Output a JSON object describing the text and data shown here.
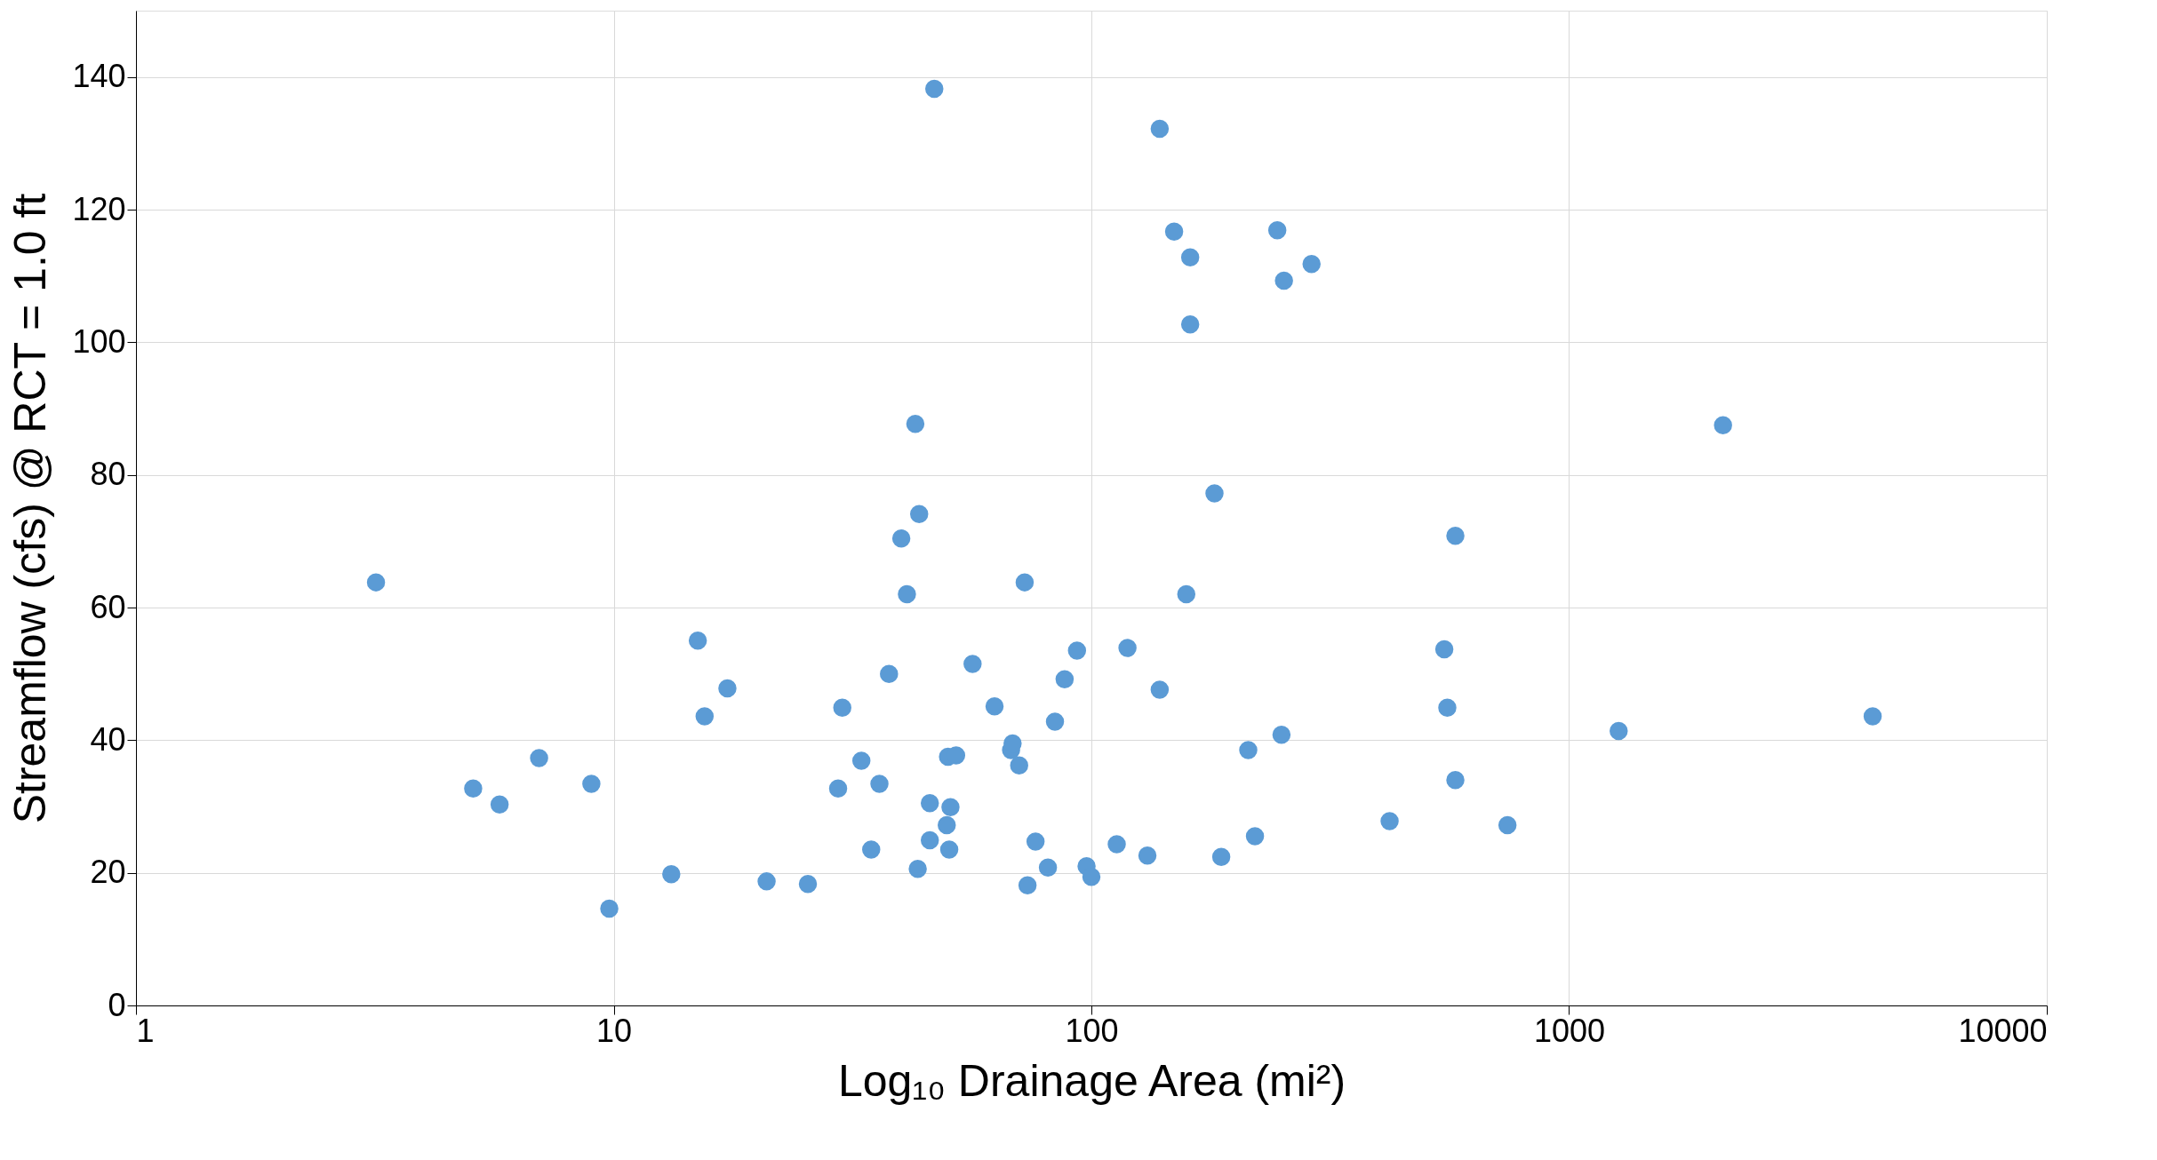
{
  "chart_data": {
    "type": "scatter",
    "xlabel": "Log₁₀ Drainage Area (mi²)",
    "ylabel": "Streamflow (cfs) @ RCT = 1.0 ft",
    "log": "x",
    "xlim": [
      1,
      10000
    ],
    "xticks": [
      1,
      10,
      100,
      1000,
      10000
    ],
    "ylim": [
      0,
      150
    ],
    "yticks": [
      0,
      20,
      40,
      60,
      80,
      100,
      120,
      140
    ],
    "grid": true,
    "marker": "circle",
    "x": [
      3.18,
      5.08,
      5.77,
      6.98,
      8.98,
      9.79,
      13.2,
      15.0,
      15.5,
      17.3,
      20.9,
      25.5,
      29.5,
      30.1,
      33.0,
      34.6,
      36.0,
      37.7,
      40.0,
      41.1,
      42.8,
      43.3,
      43.6,
      45.9,
      45.9,
      46.9,
      49.8,
      50.1,
      50.4,
      50.7,
      52.1,
      56.4,
      62.7,
      67.9,
      68.4,
      70.6,
      72.5,
      73.5,
      76.4,
      81.1,
      83.9,
      87.9,
      93.3,
      97.7,
      100,
      113,
      119,
      131,
      139,
      139,
      149,
      158,
      161,
      161,
      181,
      187,
      213,
      220,
      245,
      250,
      253,
      289,
      421,
      548,
      556,
      578,
      578,
      743,
      1270,
      2100,
      4320
    ],
    "series": [
      {
        "color": "#5b9bd5",
        "values": [
          63.8,
          32.7,
          30.3,
          37.3,
          33.4,
          14.6,
          19.8,
          55.0,
          43.6,
          47.8,
          18.7,
          18.3,
          32.7,
          44.9,
          36.9,
          23.5,
          33.4,
          50.0,
          70.4,
          62.0,
          87.7,
          20.6,
          74.1,
          30.5,
          24.9,
          138.2,
          27.2,
          37.5,
          23.5,
          29.9,
          37.7,
          51.5,
          45.1,
          38.5,
          39.5,
          36.2,
          63.8,
          18.1,
          24.7,
          20.8,
          42.8,
          49.2,
          53.5,
          21.0,
          19.4,
          24.3,
          53.9,
          22.6,
          47.6,
          132.2,
          116.7,
          62.0,
          112.8,
          102.7,
          77.2,
          22.4,
          38.5,
          25.5,
          116.9,
          40.8,
          109.3,
          111.8,
          27.8,
          53.7,
          44.9,
          70.8,
          34.0,
          27.2,
          41.4,
          87.5,
          43.6
        ]
      }
    ]
  }
}
